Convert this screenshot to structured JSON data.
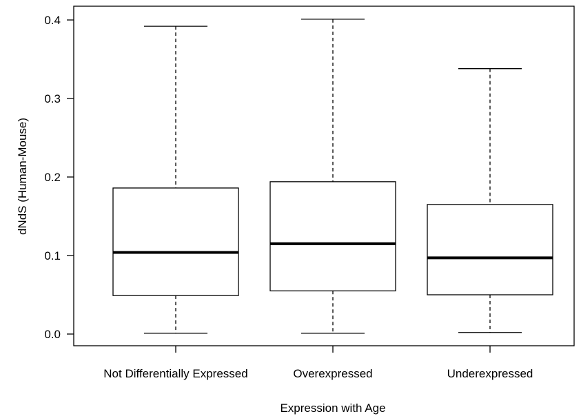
{
  "chart_data": {
    "type": "box",
    "title": "",
    "xlabel": "Expression with Age",
    "ylabel": "dNdS (Human-Mouse)",
    "ylim": [
      -0.016,
      0.42
    ],
    "yticks": [
      0.0,
      0.1,
      0.2,
      0.3,
      0.4
    ],
    "ytick_labels": [
      "0.0",
      "0.1",
      "0.2",
      "0.3",
      "0.4"
    ],
    "grid": false,
    "categories": [
      "Not Differentially Expressed",
      "Overexpressed",
      "Underexpressed"
    ],
    "boxes": [
      {
        "category": "Not Differentially Expressed",
        "whisker_low": 0.001,
        "q1": 0.049,
        "median": 0.104,
        "q3": 0.186,
        "whisker_high": 0.392
      },
      {
        "category": "Overexpressed",
        "whisker_low": 0.001,
        "q1": 0.055,
        "median": 0.115,
        "q3": 0.194,
        "whisker_high": 0.401
      },
      {
        "category": "Underexpressed",
        "whisker_low": 0.002,
        "q1": 0.05,
        "median": 0.097,
        "q3": 0.165,
        "whisker_high": 0.338
      }
    ]
  }
}
